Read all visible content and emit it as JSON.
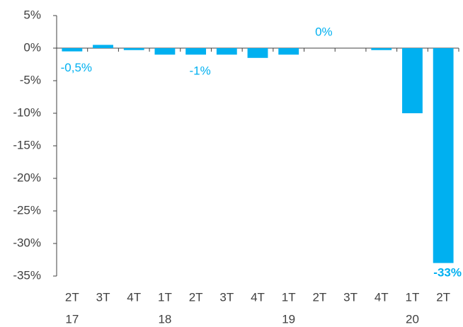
{
  "chart_data": {
    "type": "bar",
    "categories": [
      "2T",
      "3T",
      "4T",
      "1T",
      "2T",
      "3T",
      "4T",
      "1T",
      "2T",
      "3T",
      "4T",
      "1T",
      "2T"
    ],
    "years": [
      "17",
      null,
      null,
      "18",
      null,
      null,
      null,
      "19",
      null,
      null,
      null,
      "20",
      null
    ],
    "values": [
      -0.5,
      0.5,
      -0.3,
      -1,
      -1,
      -1,
      -1.5,
      -1,
      0,
      0,
      -0.3,
      -10,
      -33
    ],
    "value_labels": [
      "-0,5%",
      null,
      null,
      null,
      "-1%",
      null,
      null,
      null,
      "0%",
      null,
      null,
      null,
      "-33%"
    ],
    "color": "#00b0f0",
    "ylim": [
      -35,
      5
    ],
    "yticks": [
      {
        "value": 5,
        "label": "5%"
      },
      {
        "value": 0,
        "label": "0%"
      },
      {
        "value": -5,
        "label": "-5%"
      },
      {
        "value": -10,
        "label": "-10%"
      },
      {
        "value": -15,
        "label": "-15%"
      },
      {
        "value": -20,
        "label": "-20%"
      },
      {
        "value": -25,
        "label": "-25%"
      },
      {
        "value": -30,
        "label": "-30%"
      },
      {
        "value": -35,
        "label": "-35%"
      }
    ]
  }
}
